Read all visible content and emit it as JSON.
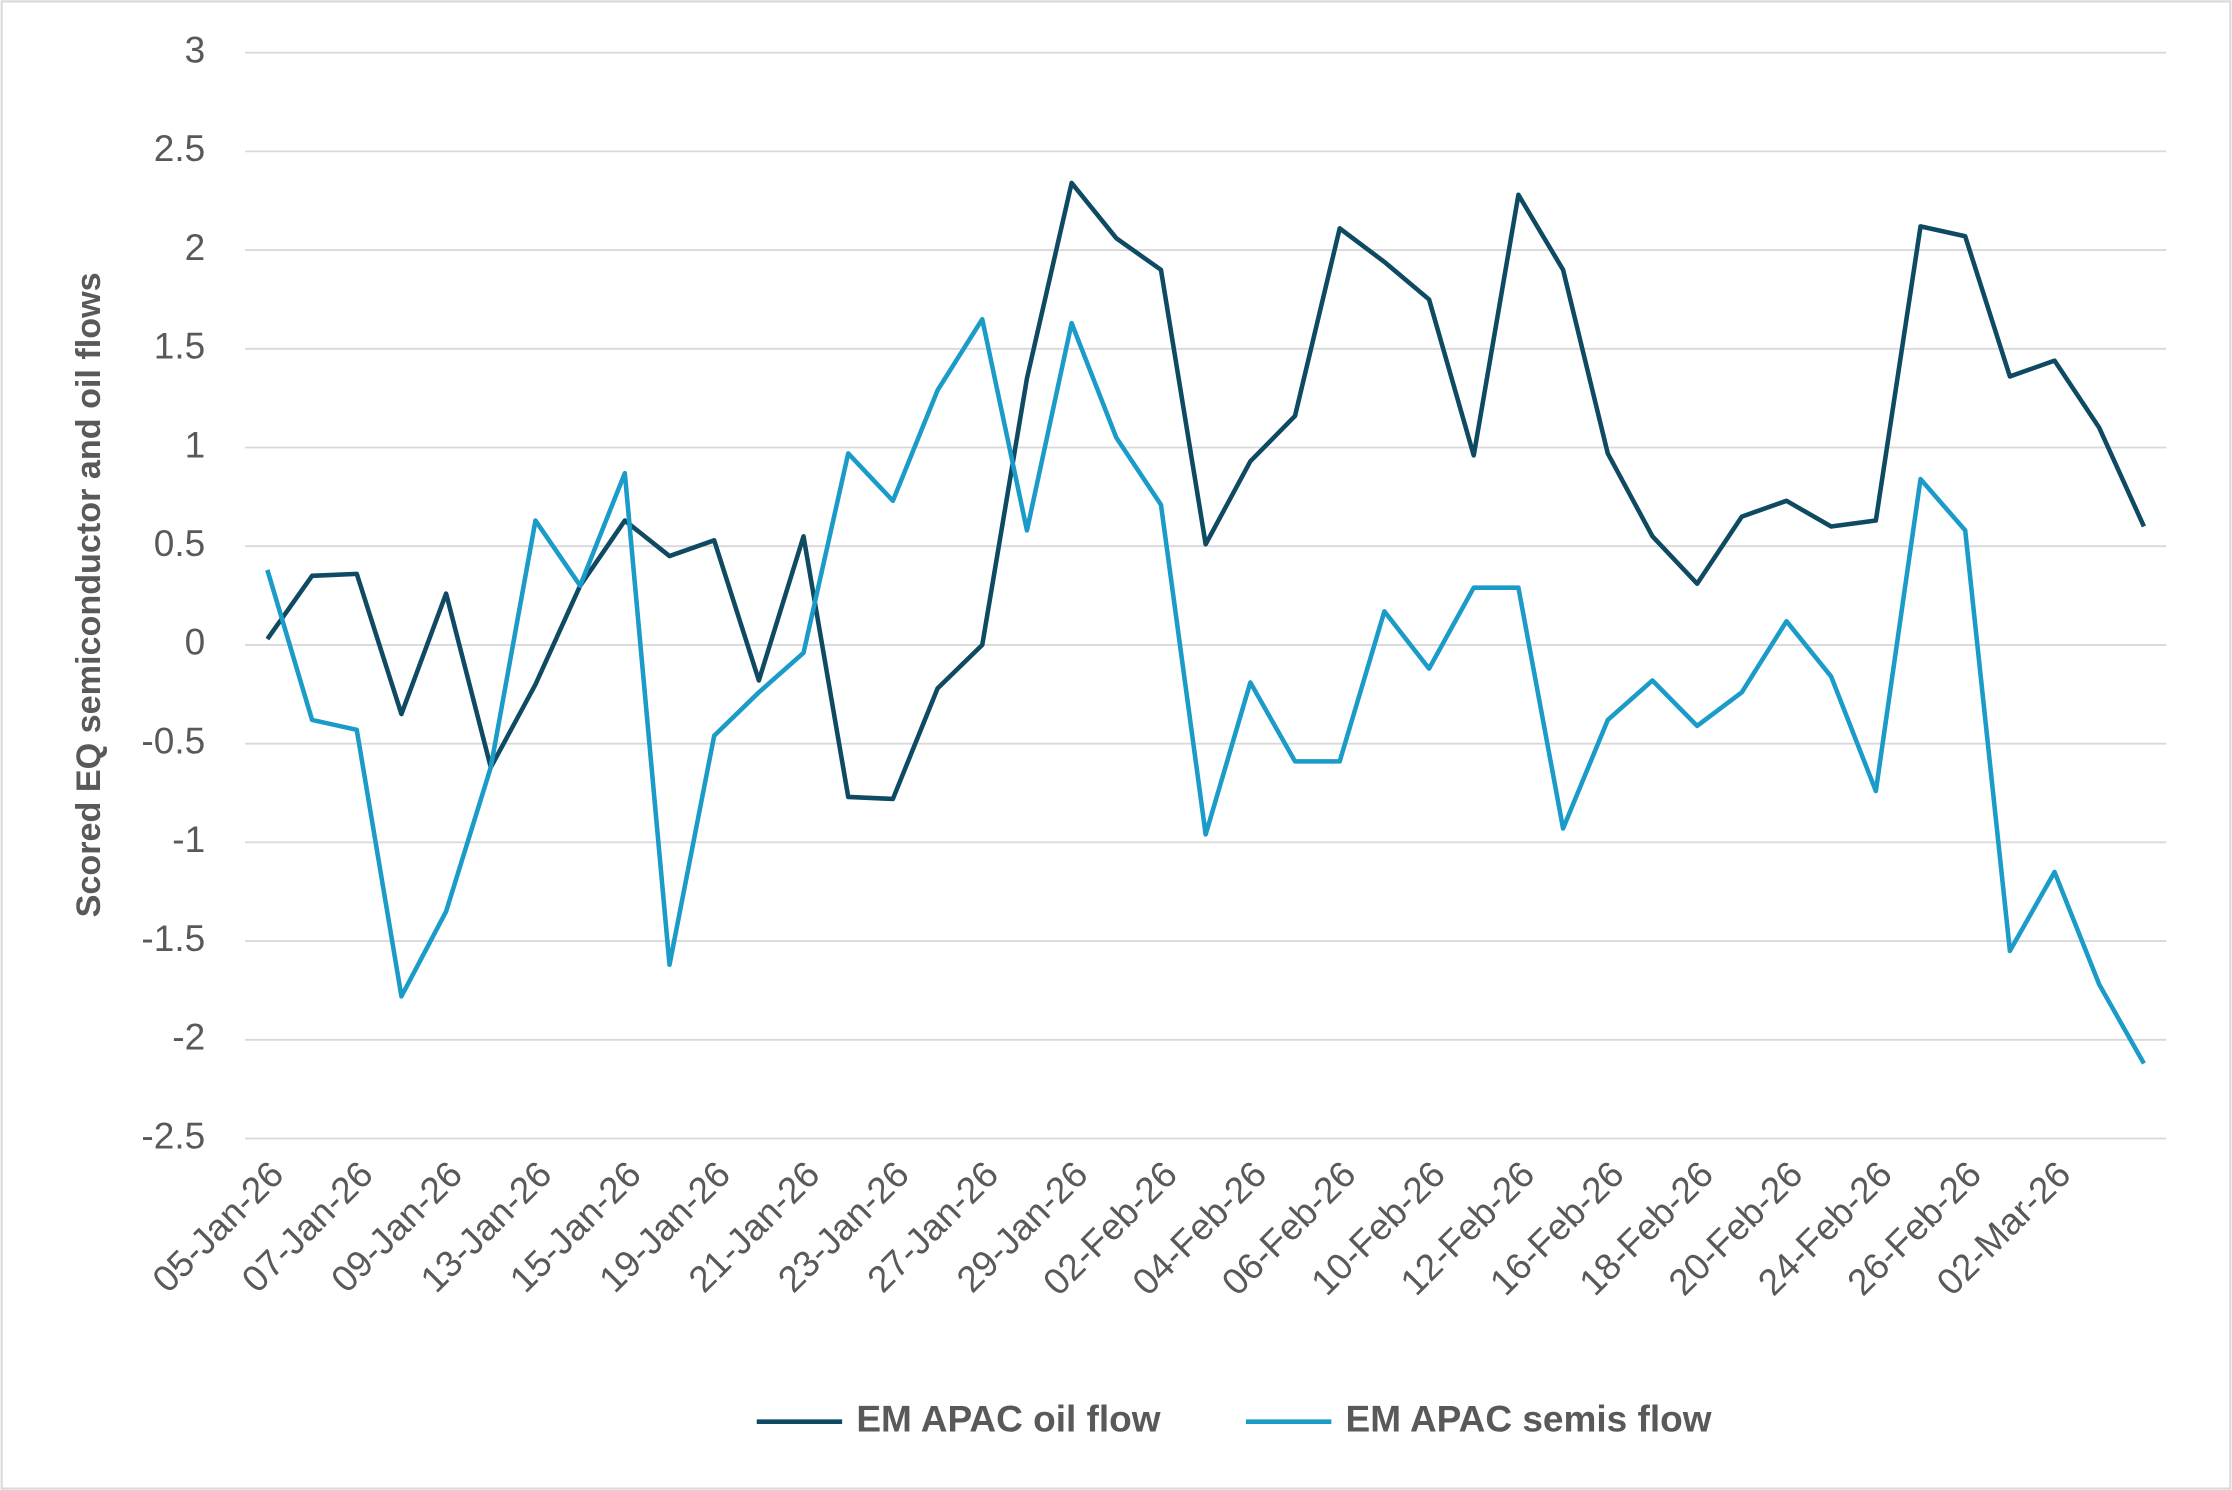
{
  "chart_data": {
    "type": "line",
    "y_label": "Scored EQ semiconductor and oil flows",
    "categories": [
      "05-Jan-26",
      null,
      "07-Jan-26",
      null,
      "09-Jan-26",
      null,
      "13-Jan-26",
      null,
      "15-Jan-26",
      null,
      "19-Jan-26",
      null,
      "21-Jan-26",
      null,
      "23-Jan-26",
      null,
      "27-Jan-26",
      null,
      "29-Jan-26",
      null,
      "02-Feb-26",
      null,
      "04-Feb-26",
      null,
      "06-Feb-26",
      null,
      "10-Feb-26",
      null,
      "12-Feb-26",
      null,
      "16-Feb-26",
      null,
      "18-Feb-26",
      null,
      "20-Feb-26",
      null,
      "24-Feb-26",
      null,
      "26-Feb-26",
      null,
      "02-Mar-26",
      null,
      null
    ],
    "series": [
      {
        "name": "EM APAC oil flow",
        "color": "#0e4a62",
        "values": [
          0.03,
          0.35,
          0.36,
          -0.35,
          0.26,
          -0.62,
          -0.2,
          0.3,
          0.63,
          0.45,
          0.53,
          -0.18,
          0.55,
          -0.77,
          -0.78,
          -0.22,
          0,
          1.35,
          2.34,
          2.06,
          1.9,
          0.51,
          0.93,
          1.16,
          2.11,
          1.94,
          1.75,
          0.96,
          2.28,
          1.9,
          0.97,
          0.55,
          0.31,
          0.65,
          0.73,
          0.6,
          0.63,
          2.12,
          2.07,
          1.36,
          1.44,
          1.1,
          0.6
        ]
      },
      {
        "name": "EM APAC semis flow",
        "color": "#1a9bc8",
        "values": [
          0.38,
          -0.38,
          -0.43,
          -1.78,
          -1.35,
          -0.62,
          0.63,
          0.3,
          0.87,
          -1.62,
          -0.46,
          -0.24,
          -0.04,
          0.97,
          0.73,
          1.29,
          1.65,
          0.58,
          1.63,
          1.05,
          0.71,
          -0.96,
          -0.19,
          -0.59,
          -0.59,
          0.17,
          -0.12,
          0.29,
          0.29,
          -0.93,
          -0.38,
          -0.18,
          -0.41,
          -0.24,
          0.12,
          -0.16,
          -0.74,
          0.84,
          0.58,
          -1.55,
          -1.15,
          -1.72,
          -2.12
        ]
      }
    ],
    "ylim": [
      -2.5,
      3
    ],
    "yticks": [
      3,
      2.5,
      2,
      1.5,
      1,
      0.5,
      0,
      -0.5,
      -1,
      -1.5,
      -2,
      -2.5
    ],
    "grid": true,
    "legend": "bottom"
  }
}
